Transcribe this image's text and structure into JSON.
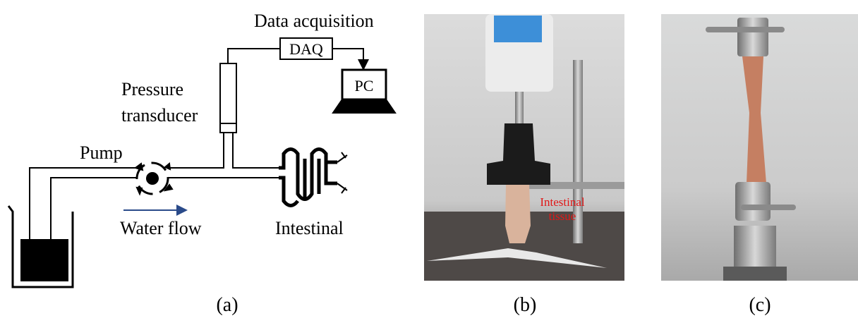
{
  "panel_a": {
    "data_acquisition": "Data acquisition",
    "daq": "DAQ",
    "pc": "PC",
    "pressure_transducer": [
      "Pressure",
      "transducer"
    ],
    "pump": "Pump",
    "water_flow": "Water flow",
    "intestinal": "Intestinal",
    "caption": "(a)"
  },
  "panel_b": {
    "annotation": [
      "Intestinal",
      "tissue"
    ],
    "caption": "(b)"
  },
  "panel_c": {
    "caption": "(c)"
  }
}
